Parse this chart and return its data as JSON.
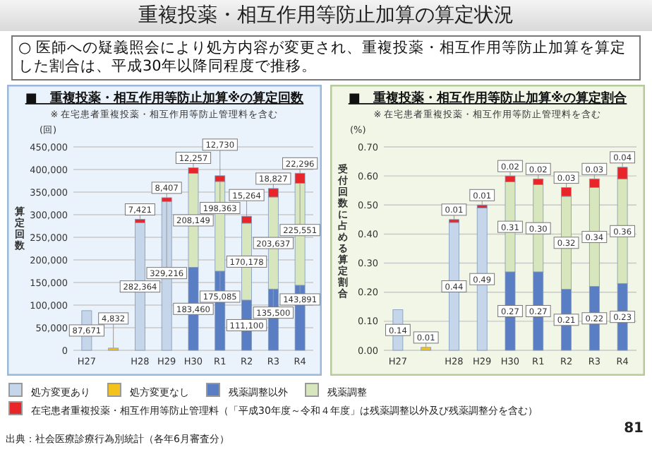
{
  "chart_data": [
    {
      "type": "bar",
      "stacked": true,
      "title": "■　重複投薬・相互作用等防止加算※の算定回数",
      "subtitle": "※ 在宅患者重複投薬・相互作用等防止管理料を含む",
      "ylabel": "算定回数",
      "annotations": [
        "重複投薬・相互作用等防止加算の算定状況",
        "○ 医師への疑義照会により処方内容が変更され、重複投薬・相互作用等防止加算を算定した割合は、平成30年以降同程度で推移。",
        "出典：社会医療診療行為別統計（各年6月審査分）",
        "81",
        "(回)"
      ],
      "categories": [
        "H27",
        null,
        "H28",
        "H29",
        "H30",
        "R1",
        "R2",
        "R3",
        "R4"
      ],
      "series": [
        {
          "name": "処方変更あり",
          "color": "#c6d6ea",
          "values": [
            87671,
            null,
            282364,
            329216,
            null,
            null,
            null,
            null,
            null
          ],
          "value_labels": [
            "87,671",
            null,
            "282,364",
            "329,216",
            null,
            null,
            null,
            null,
            null
          ]
        },
        {
          "name": "処方変更なし",
          "color": "#f4c21c",
          "values": [
            null,
            4832,
            null,
            null,
            null,
            null,
            null,
            null,
            null
          ],
          "value_labels": [
            null,
            "4,832",
            null,
            null,
            null,
            null,
            null,
            null,
            null
          ]
        },
        {
          "name": "残薬調整以外",
          "color": "#5a7ec4",
          "values": [
            null,
            null,
            null,
            null,
            183460,
            175085,
            111100,
            135500,
            143891
          ],
          "value_labels": [
            null,
            null,
            null,
            null,
            "183,460",
            "175,085",
            "111,100",
            "135,500",
            "143,891"
          ]
        },
        {
          "name": "残薬調整",
          "color": "#d8e6bd",
          "values": [
            null,
            null,
            null,
            null,
            208149,
            198363,
            170178,
            203637,
            225551
          ],
          "value_labels": [
            null,
            null,
            null,
            null,
            "208,149",
            "198,363",
            "170,178",
            "203,637",
            "225,551"
          ]
        },
        {
          "name": "在宅患者重複投薬・相互作用等防止管理料（「平成30年度～令和４年度」は残薬調整以外及び残薬調整分を含む）",
          "color": "#e8262a",
          "values": [
            null,
            null,
            7421,
            8407,
            12257,
            12730,
            15264,
            18827,
            22296
          ],
          "value_labels": [
            null,
            null,
            "7,421",
            "8,407",
            "12,257",
            "12,730",
            "15,264",
            "18,827",
            "22,296"
          ]
        }
      ],
      "ylim": [
        0,
        450000
      ],
      "yticks": [
        0,
        {
          "value": 50000,
          "label": "50,000"
        },
        {
          "value": 100000,
          "label": "100,000"
        },
        {
          "value": 150000,
          "label": "150,000"
        },
        {
          "value": 200000,
          "label": "200,000"
        },
        {
          "value": 250000,
          "label": "250,000"
        },
        {
          "value": 300000,
          "label": "300,000"
        },
        {
          "value": 350000,
          "label": "350,000"
        },
        {
          "value": 400000,
          "label": "400,000"
        },
        {
          "value": 450000,
          "label": "450,000"
        }
      ],
      "grid": "y",
      "legend": "bottom"
    },
    {
      "type": "bar",
      "stacked": true,
      "title": "■　重複投薬・相互作用等防止加算※の算定割合",
      "subtitle": "※ 在宅患者重複投薬・相互作用等防止管理料を含む",
      "ylabel": "受付回数に占める算定割合",
      "annotations": [
        "(%)"
      ],
      "categories": [
        "H27",
        null,
        "H28",
        "H29",
        "H30",
        "R1",
        "R2",
        "R3",
        "R4"
      ],
      "series": [
        {
          "name": "処方変更あり",
          "color": "#c6d6ea",
          "values": [
            0.14,
            null,
            0.44,
            0.49,
            null,
            null,
            null,
            null,
            null
          ],
          "value_labels": [
            "0.14",
            null,
            "0.44",
            "0.49",
            null,
            null,
            null,
            null,
            null
          ]
        },
        {
          "name": "処方変更なし",
          "color": "#f4c21c",
          "values": [
            null,
            0.01,
            null,
            null,
            null,
            null,
            null,
            null,
            null
          ],
          "value_labels": [
            null,
            "0.01",
            null,
            null,
            null,
            null,
            null,
            null,
            null
          ]
        },
        {
          "name": "残薬調整以外",
          "color": "#5a7ec4",
          "values": [
            null,
            null,
            null,
            null,
            0.27,
            0.27,
            0.21,
            0.22,
            0.23
          ],
          "value_labels": [
            null,
            null,
            null,
            null,
            "0.27",
            "0.27",
            "0.21",
            "0.22",
            "0.23"
          ]
        },
        {
          "name": "残薬調整",
          "color": "#d8e6bd",
          "values": [
            null,
            null,
            null,
            null,
            0.31,
            0.3,
            0.32,
            0.34,
            0.36
          ],
          "value_labels": [
            null,
            null,
            null,
            null,
            "0.31",
            "0.30",
            "0.32",
            "0.34",
            "0.36"
          ]
        },
        {
          "name": "在宅患者重複投薬・相互作用等防止管理料（「平成30年度～令和４年度」は残薬調整以外及び残薬調整分を含む）",
          "color": "#e8262a",
          "values": [
            null,
            null,
            0.01,
            0.01,
            0.02,
            0.02,
            0.03,
            0.03,
            0.04
          ],
          "value_labels": [
            null,
            null,
            "0.01",
            "0.01",
            "0.02",
            "0.02",
            "0.03",
            "0.03",
            "0.04"
          ]
        }
      ],
      "ylim": [
        0,
        0.7
      ],
      "yticks": [
        {
          "value": 0,
          "label": "0.00"
        },
        {
          "value": 0.1,
          "label": "0.10"
        },
        {
          "value": 0.2,
          "label": "0.20"
        },
        {
          "value": 0.3,
          "label": "0.30"
        },
        {
          "value": 0.4,
          "label": "0.40"
        },
        {
          "value": 0.5,
          "label": "0.50"
        },
        {
          "value": 0.6,
          "label": "0.60"
        },
        {
          "value": 0.7,
          "label": "0.70"
        }
      ],
      "grid": "y",
      "legend": "bottom"
    }
  ]
}
